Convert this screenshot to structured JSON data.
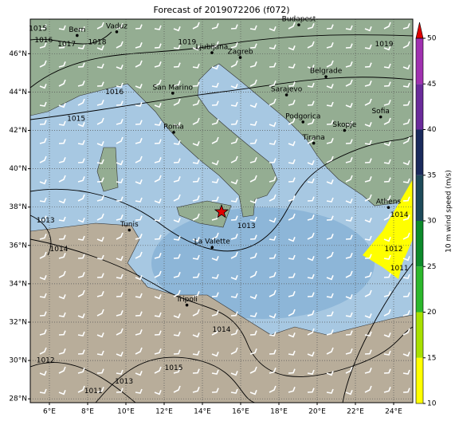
{
  "map": {
    "title": "Forecast of 2019072206 (f072)",
    "lon_lim": [
      5,
      25
    ],
    "lat_lim": [
      27.8,
      47.8
    ],
    "lon_ticks": [
      {
        "value": 6,
        "label": "6°E"
      },
      {
        "value": 8,
        "label": "8°E"
      },
      {
        "value": 10,
        "label": "10°E"
      },
      {
        "value": 12,
        "label": "12°E"
      },
      {
        "value": 14,
        "label": "14°E"
      },
      {
        "value": 16,
        "label": "16°E"
      },
      {
        "value": 18,
        "label": "18°E"
      },
      {
        "value": 20,
        "label": "20°E"
      },
      {
        "value": 22,
        "label": "22°E"
      },
      {
        "value": 24,
        "label": "24°E"
      }
    ],
    "lat_ticks": [
      {
        "value": 28,
        "label": "28°N"
      },
      {
        "value": 30,
        "label": "30°N"
      },
      {
        "value": 32,
        "label": "32°N"
      },
      {
        "value": 34,
        "label": "34°N"
      },
      {
        "value": 36,
        "label": "36°N"
      },
      {
        "value": 38,
        "label": "38°N"
      },
      {
        "value": 40,
        "label": "40°N"
      },
      {
        "value": 42,
        "label": "42°N"
      },
      {
        "value": 44,
        "label": "44°N"
      },
      {
        "value": 46,
        "label": "46°N"
      }
    ],
    "grid": true,
    "cities": [
      {
        "name": "Bern",
        "lon": 7.45,
        "lat": 46.95
      },
      {
        "name": "Vaduz",
        "lon": 9.52,
        "lat": 47.14
      },
      {
        "name": "Budapest",
        "lon": 19.04,
        "lat": 47.5
      },
      {
        "name": "Ljubljana",
        "lon": 14.5,
        "lat": 46.05
      },
      {
        "name": "Zagreb",
        "lon": 15.98,
        "lat": 45.8
      },
      {
        "name": "San Marino",
        "lon": 12.45,
        "lat": 43.94
      },
      {
        "name": "Belgrade",
        "lon": 20.46,
        "lat": 44.8
      },
      {
        "name": "Sarajevo",
        "lon": 18.4,
        "lat": 43.85
      },
      {
        "name": "Roma",
        "lon": 12.5,
        "lat": 41.9
      },
      {
        "name": "Podgorica",
        "lon": 19.26,
        "lat": 42.44
      },
      {
        "name": "Sofia",
        "lon": 23.32,
        "lat": 42.7
      },
      {
        "name": "Skopje",
        "lon": 21.43,
        "lat": 42.0
      },
      {
        "name": "Tirana",
        "lon": 19.82,
        "lat": 41.33
      },
      {
        "name": "Athens",
        "lon": 23.73,
        "lat": 37.98
      },
      {
        "name": "Tunis",
        "lon": 10.18,
        "lat": 36.8
      },
      {
        "name": "La Valette",
        "lon": 14.51,
        "lat": 35.9
      },
      {
        "name": "Tripoli",
        "lon": 13.19,
        "lat": 32.89
      }
    ],
    "marker": {
      "lon": 15.0,
      "lat": 37.75,
      "color": "#e00000"
    },
    "isobar_labels": [
      {
        "text": "1015",
        "lon": 5.4,
        "lat": 47.3
      },
      {
        "text": "1016",
        "lon": 5.7,
        "lat": 46.7
      },
      {
        "text": "1017",
        "lon": 6.9,
        "lat": 46.5
      },
      {
        "text": "1018",
        "lon": 8.5,
        "lat": 46.6
      },
      {
        "text": "1019",
        "lon": 13.2,
        "lat": 46.6
      },
      {
        "text": "1019",
        "lon": 23.5,
        "lat": 46.5
      },
      {
        "text": "1016",
        "lon": 9.4,
        "lat": 44.0
      },
      {
        "text": "1015",
        "lon": 7.4,
        "lat": 42.6
      },
      {
        "text": "1013",
        "lon": 5.8,
        "lat": 37.3
      },
      {
        "text": "1014",
        "lon": 6.5,
        "lat": 35.8
      },
      {
        "text": "1013",
        "lon": 16.3,
        "lat": 37.0
      },
      {
        "text": "1012",
        "lon": 5.8,
        "lat": 30.0
      },
      {
        "text": "1011",
        "lon": 8.3,
        "lat": 28.4
      },
      {
        "text": "1013",
        "lon": 9.9,
        "lat": 28.9
      },
      {
        "text": "1014",
        "lon": 15.0,
        "lat": 31.6
      },
      {
        "text": "1015",
        "lon": 12.5,
        "lat": 29.6
      },
      {
        "text": "1014",
        "lon": 24.3,
        "lat": 37.6
      },
      {
        "text": "1012",
        "lon": 24.0,
        "lat": 35.8
      },
      {
        "text": "1011",
        "lon": 24.3,
        "lat": 34.8
      }
    ],
    "colorbar": {
      "label": "10 m wind speed (m/s)",
      "lim": [
        10,
        50
      ],
      "ticks": [
        10,
        15,
        20,
        25,
        30,
        35,
        40,
        45,
        50
      ],
      "colors": [
        "#ffff00",
        "#a8e000",
        "#2cb82c",
        "#0c8a2a",
        "#1e4a5a",
        "#1a2a5c",
        "#6a2a9a",
        "#a030b0"
      ],
      "extend_color": "#e00000"
    }
  }
}
